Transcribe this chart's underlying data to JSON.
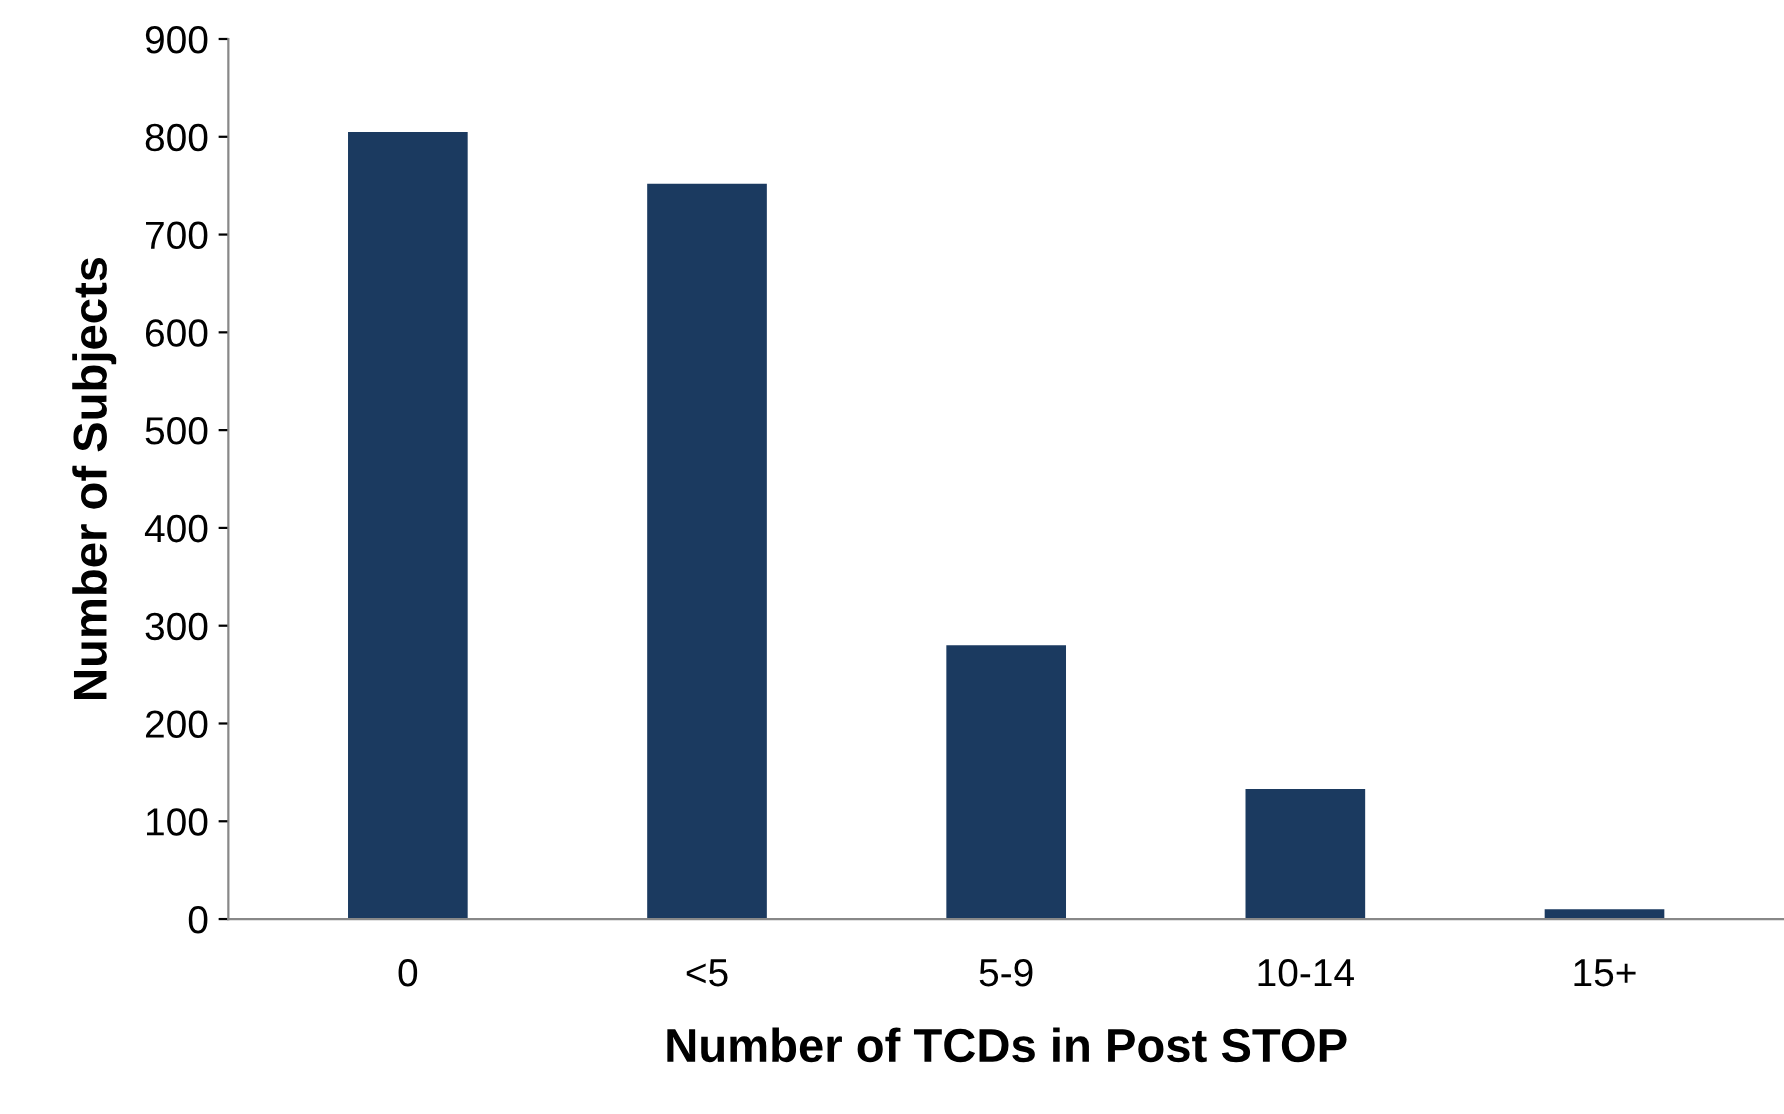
{
  "chart_data": {
    "type": "bar",
    "xlabel": "Number of TCDs in Post STOP",
    "ylabel": "Number of Subjects",
    "categories": [
      "0",
      "<5",
      "5-9",
      "10-14",
      "15+"
    ],
    "values": [
      805,
      752,
      280,
      133,
      10
    ],
    "color": "#1b3a60",
    "ylim": [
      0,
      900
    ],
    "yticks": [
      0,
      100,
      200,
      300,
      400,
      500,
      600,
      700,
      800,
      900
    ],
    "grid": false,
    "legend": false
  }
}
